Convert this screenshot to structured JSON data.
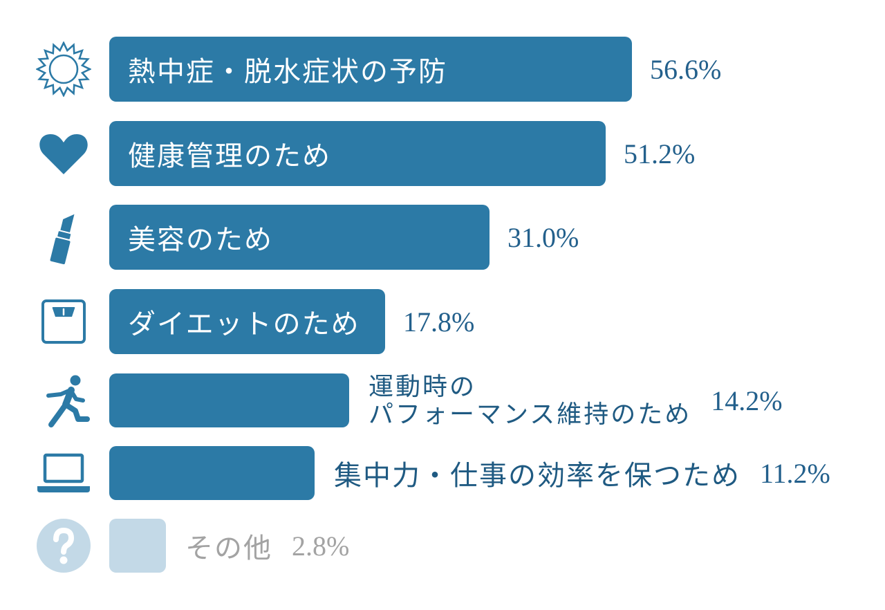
{
  "chart_data": {
    "type": "bar",
    "orientation": "horizontal",
    "categories": [
      "熱中症・脱水症状の予防",
      "健康管理のため",
      "美容のため",
      "ダイエットのため",
      "運動時の\nパフォーマンス維持のため",
      "集中力・仕事の効率を保つため",
      "その他"
    ],
    "values": [
      56.6,
      51.2,
      31.0,
      17.8,
      14.2,
      11.2,
      2.8
    ],
    "value_labels": [
      "56.6%",
      "51.2%",
      "31.0%",
      "17.8%",
      "14.2%",
      "11.2%",
      "2.8%"
    ],
    "grid": false,
    "legend": false
  },
  "rows": [
    {
      "icon": "sun-icon"
    },
    {
      "icon": "heart-icon"
    },
    {
      "icon": "lipstick-icon"
    },
    {
      "icon": "scale-icon"
    },
    {
      "icon": "running-person-icon"
    },
    {
      "icon": "laptop-icon"
    },
    {
      "icon": "question-icon",
      "muted": true
    }
  ],
  "colors": {
    "bar": "#2c7aa6",
    "bar_muted": "#c3d9e7",
    "icon": "#2c7aa6",
    "icon_muted": "#c3d9e7",
    "label_inside": "#ffffff",
    "label_outside": "#1f5a82",
    "value": "#23608c",
    "muted_text": "#a3a3a3"
  }
}
